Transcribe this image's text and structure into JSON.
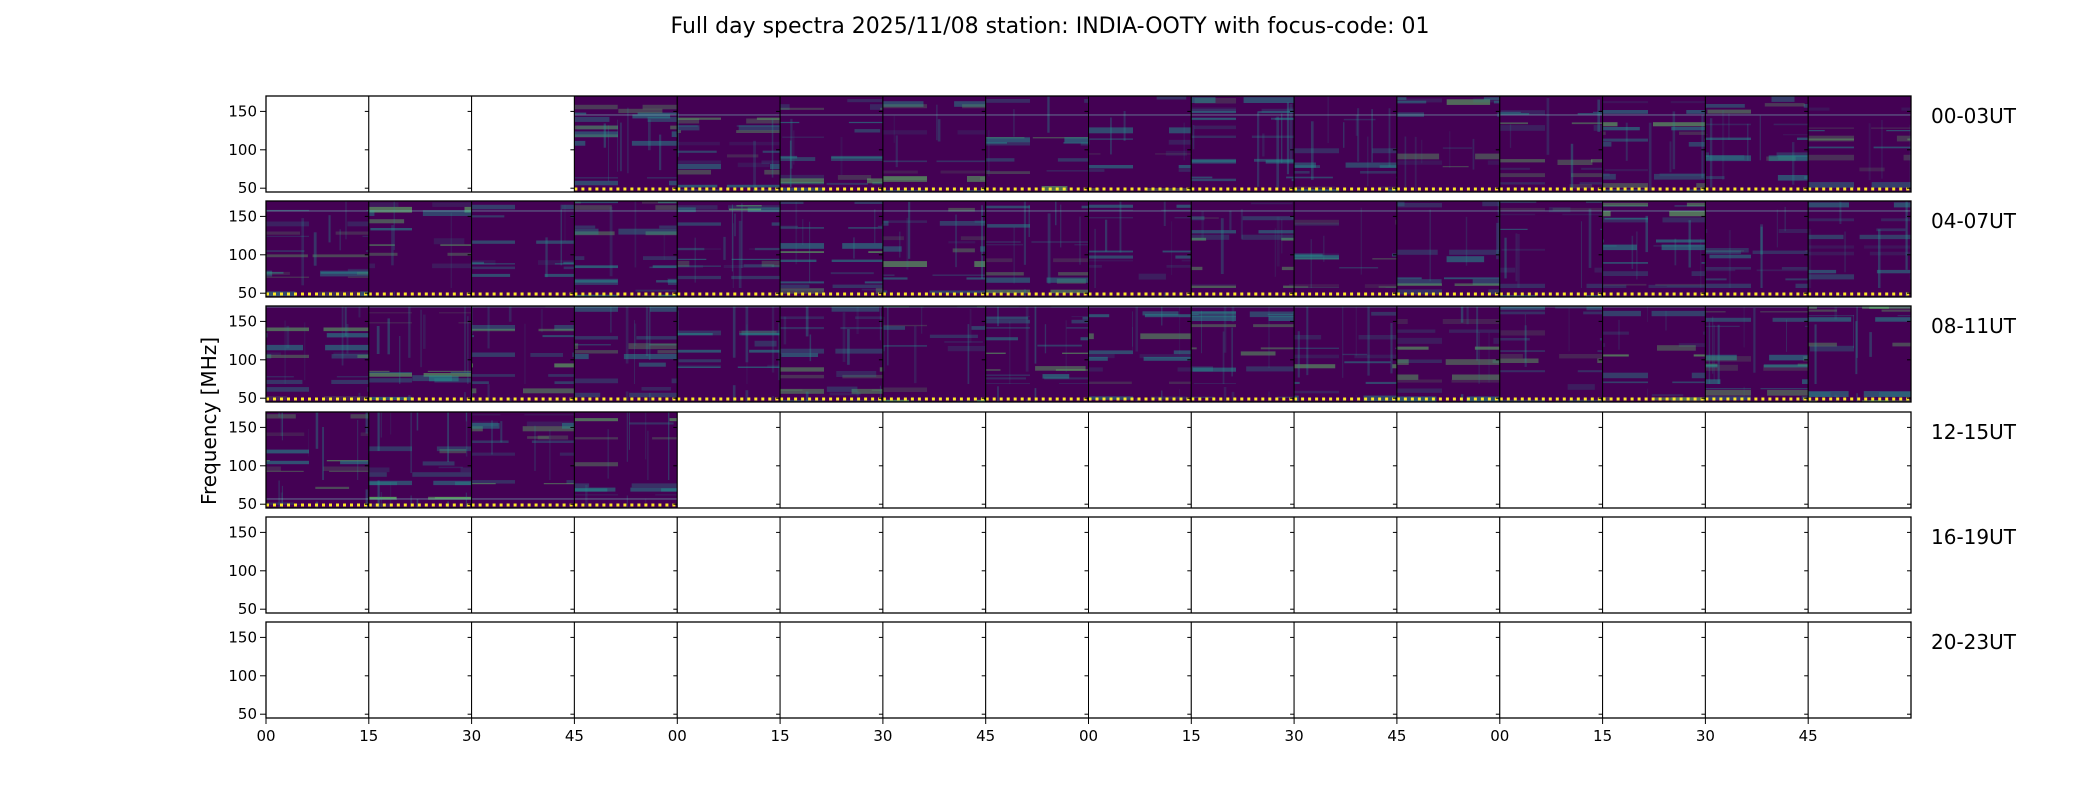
{
  "chart_data": {
    "type": "heatmap",
    "title": "Full day spectra 2025/11/08 station: INDIA-OOTY with focus-code: 01",
    "ylabel": "Frequency [MHz]",
    "xlabel": "",
    "ylim": [
      45,
      170
    ],
    "y_ticks": [
      50,
      100,
      150
    ],
    "x_tick_labels": [
      "00",
      "15",
      "30",
      "45",
      "00",
      "15",
      "30",
      "45",
      "00",
      "15",
      "30",
      "45",
      "00",
      "15",
      "30",
      "45"
    ],
    "colormap": "viridis",
    "row_labels": [
      "00-03UT",
      "04-07UT",
      "08-11UT",
      "12-15UT",
      "16-19UT",
      "20-23UT"
    ],
    "panels_per_row": 16,
    "panel_minutes": 15,
    "data_coverage": [
      [
        0,
        0,
        0,
        1,
        1,
        1,
        1,
        1,
        1,
        1,
        1,
        1,
        1,
        1,
        1,
        1
      ],
      [
        1,
        1,
        1,
        1,
        1,
        1,
        1,
        1,
        1,
        1,
        1,
        1,
        1,
        1,
        1,
        1
      ],
      [
        1,
        1,
        1,
        1,
        1,
        1,
        1,
        1,
        1,
        1,
        1,
        1,
        1,
        1,
        1,
        1
      ],
      [
        1,
        1,
        1,
        1,
        0,
        0,
        0,
        0,
        0,
        0,
        0,
        0,
        0,
        0,
        0,
        0
      ],
      [
        0,
        0,
        0,
        0,
        0,
        0,
        0,
        0,
        0,
        0,
        0,
        0,
        0,
        0,
        0,
        0
      ],
      [
        0,
        0,
        0,
        0,
        0,
        0,
        0,
        0,
        0,
        0,
        0,
        0,
        0,
        0,
        0,
        0
      ]
    ],
    "colors": {
      "background": "#440154",
      "bright": "#21918c",
      "highlight": "#5ec962",
      "marker": "#fde725"
    }
  }
}
